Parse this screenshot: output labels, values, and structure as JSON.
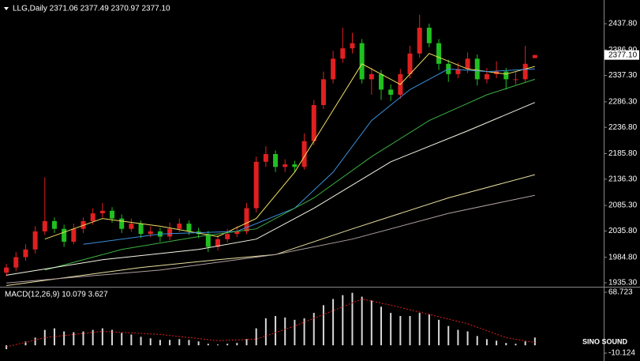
{
  "chart_data": [
    {
      "type": "candlestick",
      "title": "LLG,Daily  2371.06 2377.49 2370.97 2377.10",
      "watermark": "SINO SOUND",
      "up_color": "#e02020",
      "down_color": "#20c020",
      "xlim": [
        -0.5,
        56
      ],
      "ylim": [
        1929.2,
        2476.1
      ],
      "yticks": [
        {
          "value": 2437.8,
          "label": "2437.80"
        },
        {
          "value": 2386.9,
          "label": "2386.90"
        },
        {
          "value": 2337.3,
          "label": "2337.30"
        },
        {
          "value": 2286.3,
          "label": "2286.30"
        },
        {
          "value": 2236.8,
          "label": "2236.80"
        },
        {
          "value": 2185.8,
          "label": "2185.80"
        },
        {
          "value": 2136.3,
          "label": "2136.30"
        },
        {
          "value": 2085.3,
          "label": "2085.30"
        },
        {
          "value": 2035.8,
          "label": "2035.80"
        },
        {
          "value": 1984.8,
          "label": "1984.80"
        },
        {
          "value": 1935.3,
          "label": "1935.30"
        }
      ],
      "last_price": {
        "value": 2377.1,
        "label": "2377.10"
      },
      "open": [
        1955,
        1965,
        1985,
        2000,
        2035,
        2055,
        2040,
        2015,
        2040,
        2055,
        2070,
        2075,
        2060,
        2040,
        2050,
        2030,
        2035,
        2025,
        2040,
        2050,
        2035,
        2030,
        2005,
        2020,
        2030,
        2035,
        2080,
        2170,
        2185,
        2160,
        2165,
        2160,
        2210,
        2280,
        2330,
        2370,
        2390,
        2400,
        2330,
        2340,
        2310,
        2300,
        2340,
        2380,
        2430,
        2400,
        2360,
        2340,
        2350,
        2370,
        2330,
        2340,
        2345,
        2330,
        2330,
        2371.06
      ],
      "high": [
        1972,
        1995,
        2010,
        2045,
        2140,
        2062,
        2048,
        2050,
        2062,
        2080,
        2090,
        2082,
        2068,
        2060,
        2056,
        2045,
        2042,
        2052,
        2060,
        2056,
        2042,
        2036,
        2028,
        2040,
        2045,
        2090,
        2180,
        2200,
        2192,
        2175,
        2172,
        2225,
        2290,
        2345,
        2385,
        2430,
        2420,
        2408,
        2352,
        2348,
        2320,
        2350,
        2395,
        2455,
        2438,
        2408,
        2368,
        2362,
        2382,
        2378,
        2352,
        2365,
        2352,
        2345,
        2395,
        2377.49
      ],
      "low": [
        1948,
        1958,
        1978,
        1992,
        2028,
        2032,
        2005,
        2010,
        2032,
        2048,
        2062,
        2052,
        2032,
        2034,
        2022,
        2024,
        2015,
        2018,
        2034,
        2028,
        2022,
        1995,
        1998,
        2014,
        2024,
        2030,
        2072,
        2160,
        2150,
        2150,
        2150,
        2155,
        2202,
        2272,
        2322,
        2362,
        2380,
        2322,
        2300,
        2290,
        2288,
        2292,
        2332,
        2372,
        2392,
        2348,
        2325,
        2332,
        2342,
        2318,
        2322,
        2332,
        2310,
        2320,
        2325,
        2370.97
      ],
      "close": [
        1965,
        1985,
        2000,
        2035,
        2055,
        2040,
        2015,
        2040,
        2055,
        2070,
        2075,
        2060,
        2040,
        2050,
        2030,
        2035,
        2025,
        2040,
        2050,
        2035,
        2030,
        2005,
        2020,
        2030,
        2035,
        2080,
        2170,
        2185,
        2160,
        2165,
        2160,
        2210,
        2280,
        2330,
        2370,
        2390,
        2400,
        2330,
        2340,
        2310,
        2300,
        2340,
        2380,
        2430,
        2400,
        2360,
        2340,
        2350,
        2370,
        2330,
        2340,
        2345,
        2330,
        2330,
        2360,
        2377.1
      ],
      "series": [
        {
          "color": "#f0e060",
          "x": [
            4,
            10,
            16,
            22,
            26,
            30,
            34,
            37,
            41,
            44,
            48,
            52,
            55
          ],
          "values": [
            2020,
            2060,
            2045,
            2025,
            2060,
            2150,
            2270,
            2360,
            2320,
            2380,
            2350,
            2340,
            2355
          ]
        },
        {
          "color": "#3a8fd8",
          "x": [
            8,
            16,
            24,
            30,
            34,
            38,
            42,
            46,
            50,
            55
          ],
          "values": [
            2010,
            2030,
            2035,
            2080,
            2150,
            2250,
            2310,
            2350,
            2345,
            2350
          ]
        },
        {
          "color": "#3cb043",
          "x": [
            4,
            12,
            20,
            26,
            32,
            38,
            44,
            50,
            55
          ],
          "values": [
            1960,
            2000,
            2025,
            2040,
            2100,
            2180,
            2250,
            2300,
            2330
          ]
        },
        {
          "color": "#f5f5e6",
          "x": [
            0,
            10,
            20,
            26,
            32,
            40,
            48,
            55
          ],
          "values": [
            1950,
            1980,
            2000,
            2020,
            2080,
            2170,
            2230,
            2285
          ]
        },
        {
          "color": "#e8e0a0",
          "x": [
            0,
            14,
            22,
            28,
            36,
            46,
            55
          ],
          "values": [
            1930,
            1965,
            1980,
            1990,
            2040,
            2100,
            2145
          ]
        },
        {
          "color": "#b0a0a0",
          "x": [
            0,
            16,
            28,
            36,
            46,
            55
          ],
          "values": [
            1935,
            1960,
            1990,
            2020,
            2070,
            2105
          ]
        }
      ]
    },
    {
      "type": "macd",
      "title": "MACD(12,26,9) 10.079 3.627",
      "xlim": [
        -0.5,
        56
      ],
      "ylim": [
        -18.3,
        72.8
      ],
      "yticks": [
        68.723,
        -10.124
      ],
      "bar_color": "#d8d8d8",
      "signal_color": "#e02020",
      "values": [
        -5,
        0,
        5,
        10,
        20,
        22,
        18,
        17,
        18,
        20,
        22,
        20,
        16,
        14,
        11,
        9,
        7,
        7,
        8,
        7,
        5,
        2,
        1,
        2,
        3,
        8,
        22,
        35,
        38,
        36,
        33,
        35,
        42,
        52,
        60,
        65,
        68,
        63,
        58,
        50,
        42,
        38,
        38,
        42,
        40,
        33,
        25,
        20,
        18,
        12,
        8,
        6,
        3,
        2,
        5,
        10.079
      ],
      "signal": {
        "x": [
          0,
          4,
          10,
          16,
          22,
          26,
          30,
          34,
          37,
          40,
          44,
          48,
          52,
          55
        ],
        "values": [
          -2,
          10,
          18,
          14,
          6,
          8,
          25,
          45,
          60,
          52,
          40,
          28,
          10,
          3.627
        ]
      }
    }
  ]
}
